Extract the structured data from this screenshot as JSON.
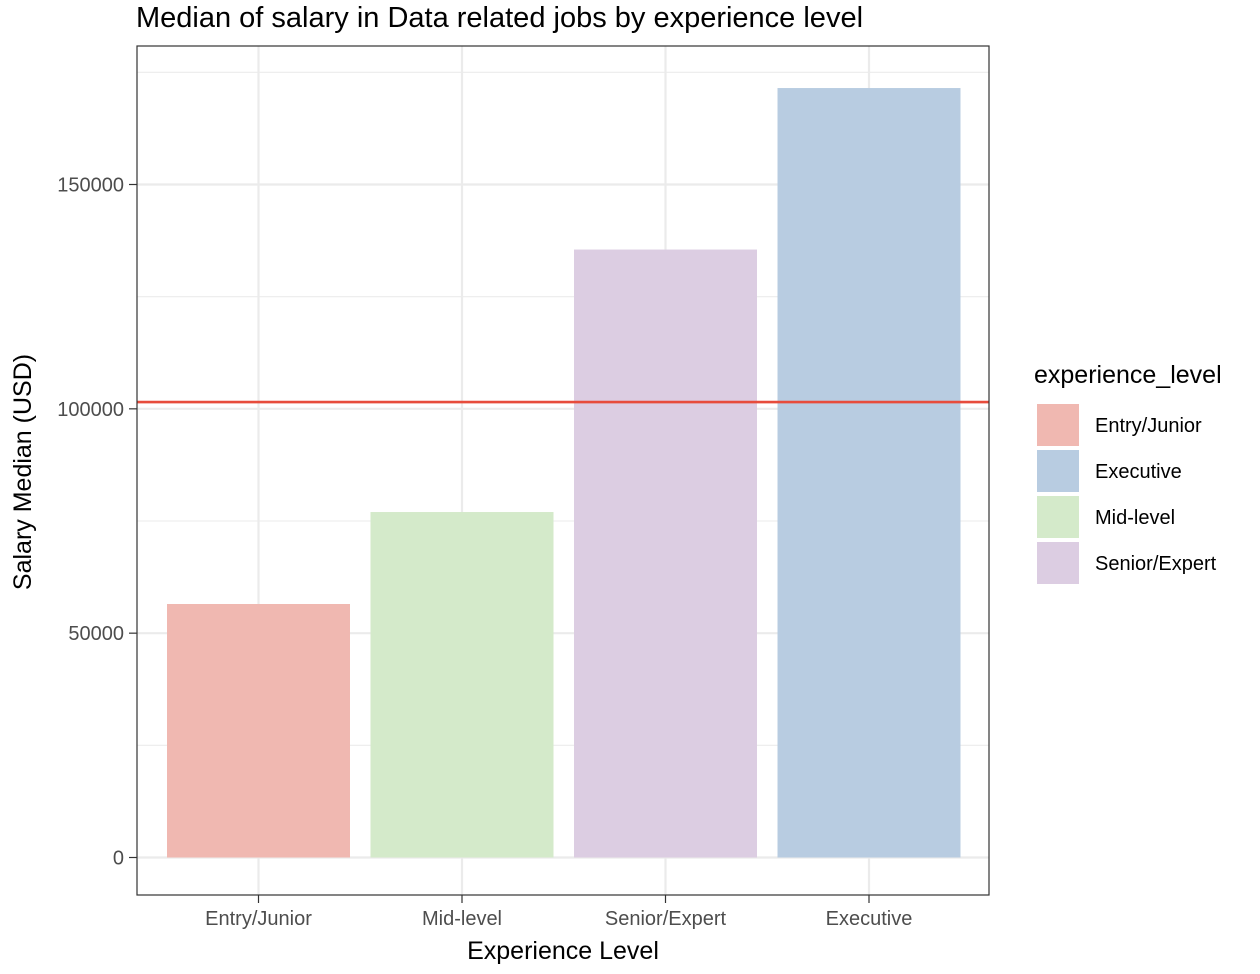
{
  "chart_data": {
    "type": "bar",
    "title": "Median of salary in Data related jobs by experience level",
    "xlabel": "Experience Level",
    "ylabel": "Salary Median (USD)",
    "categories": [
      "Entry/Junior",
      "Mid-level",
      "Senior/Expert",
      "Executive"
    ],
    "values": [
      56500,
      77000,
      135500,
      171500
    ],
    "colors": {
      "Entry/Junior": "#f0b8b1",
      "Mid-level": "#d4eaca",
      "Senior/Expert": "#dccde2",
      "Executive": "#b8cce1"
    },
    "ylim": [
      0,
      182000
    ],
    "yticks": [
      0,
      50000,
      100000,
      150000
    ],
    "yticks_minor": [
      25000,
      75000,
      125000,
      175000
    ],
    "reference_line": {
      "value": 101500,
      "color": "#e74c3c"
    },
    "grid": true,
    "legend": {
      "title": "experience_level",
      "position": "right",
      "entries": [
        "Entry/Junior",
        "Executive",
        "Mid-level",
        "Senior/Expert"
      ]
    }
  }
}
